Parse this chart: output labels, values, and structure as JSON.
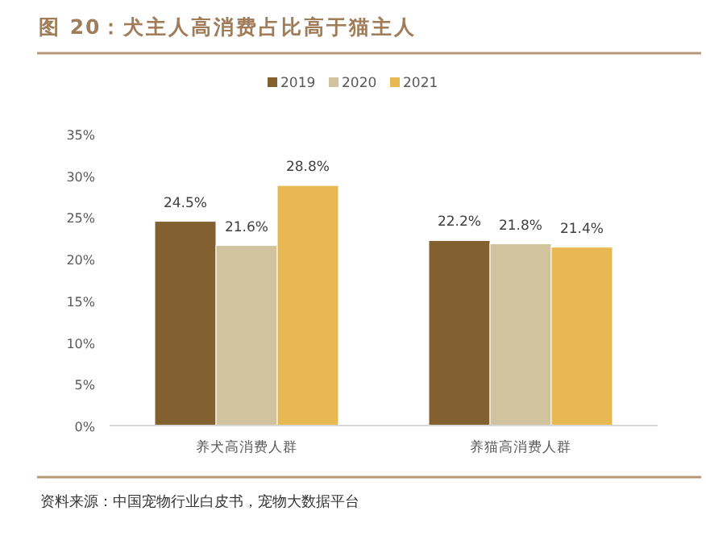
{
  "chart_data": {
    "type": "bar",
    "title": "图 20：犬主人高消费占比高于猫主人",
    "categories": [
      "养犬高消费人群",
      "养猫高消费人群"
    ],
    "series": [
      {
        "name": "2019",
        "color": "#83602f",
        "values": [
          24.5,
          22.2
        ],
        "value_labels": [
          "24.5%",
          "22.2%"
        ]
      },
      {
        "name": "2020",
        "color": "#d1c39e",
        "values": [
          21.6,
          21.8
        ],
        "value_labels": [
          "21.6%",
          "21.8%"
        ]
      },
      {
        "name": "2021",
        "color": "#e8b852",
        "values": [
          28.8,
          21.4
        ],
        "value_labels": [
          "28.8%",
          "21.4%"
        ]
      }
    ],
    "ylim": [
      0,
      35
    ],
    "yticks": [
      {
        "value": 0,
        "label": "0%"
      },
      {
        "value": 5,
        "label": "5%"
      },
      {
        "value": 10,
        "label": "10%"
      },
      {
        "value": 15,
        "label": "15%"
      },
      {
        "value": 20,
        "label": "20%"
      },
      {
        "value": 25,
        "label": "25%"
      },
      {
        "value": 30,
        "label": "30%"
      },
      {
        "value": 35,
        "label": "35%"
      }
    ],
    "legend": "top",
    "grid": false,
    "annotations": [
      "资料来源：中国宠物行业白皮书，宠物大数据平台"
    ]
  }
}
